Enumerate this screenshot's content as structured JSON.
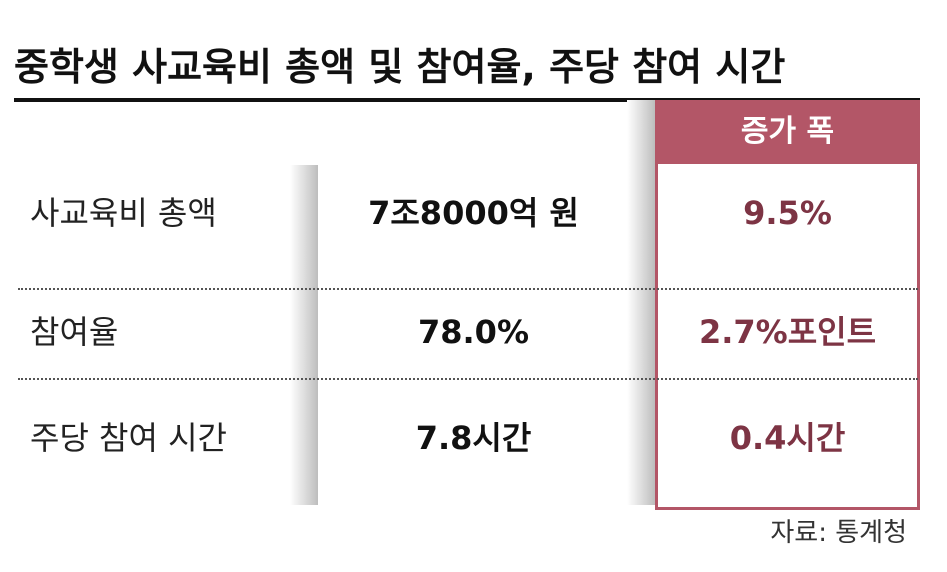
{
  "title": "중학생 사교육비 총액 및 참여율, 주당 참여 시간",
  "table": {
    "header": "증가 폭",
    "rows": [
      [
        "사교육비 총액",
        "7조8000억 원",
        "9.5%"
      ],
      [
        "참여율",
        "78.0%",
        "2.7%포인트"
      ],
      [
        "주당 참여 시간",
        "7.8시간",
        "0.4시간"
      ]
    ]
  },
  "source": "자료: 통계청"
}
